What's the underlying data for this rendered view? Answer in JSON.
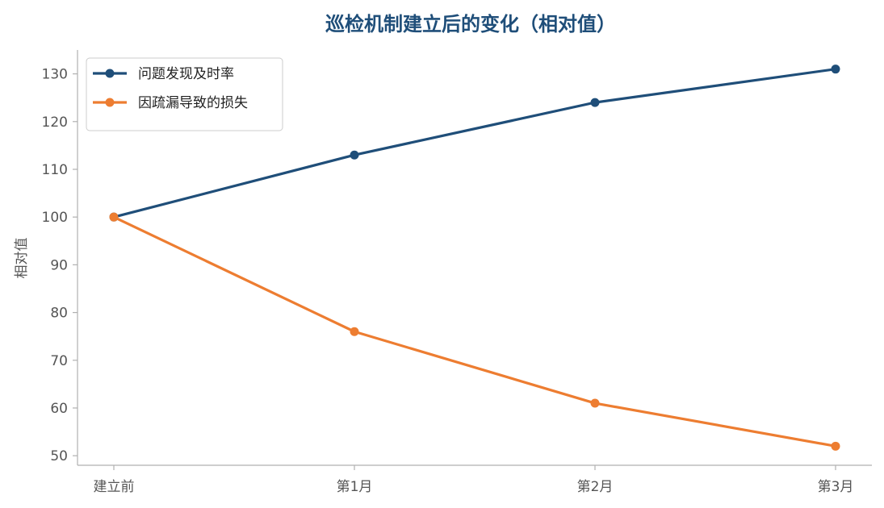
{
  "chart_data": {
    "type": "line",
    "title": "巡检机制建立后的变化（相对值）",
    "xlabel": "",
    "ylabel": "相对值",
    "categories": [
      "建立前",
      "第1月",
      "第2月",
      "第3月"
    ],
    "ylim": [
      48,
      135
    ],
    "yticks": [
      50,
      60,
      70,
      80,
      90,
      100,
      110,
      120,
      130
    ],
    "grid": false,
    "legend_position": "top-left",
    "series": [
      {
        "name": "问题发现及时率",
        "values": [
          100,
          113,
          124,
          131
        ],
        "color": "#1f4e79"
      },
      {
        "name": "因疏漏导致的损失",
        "values": [
          100,
          76,
          61,
          52
        ],
        "color": "#ed7d31"
      }
    ]
  }
}
